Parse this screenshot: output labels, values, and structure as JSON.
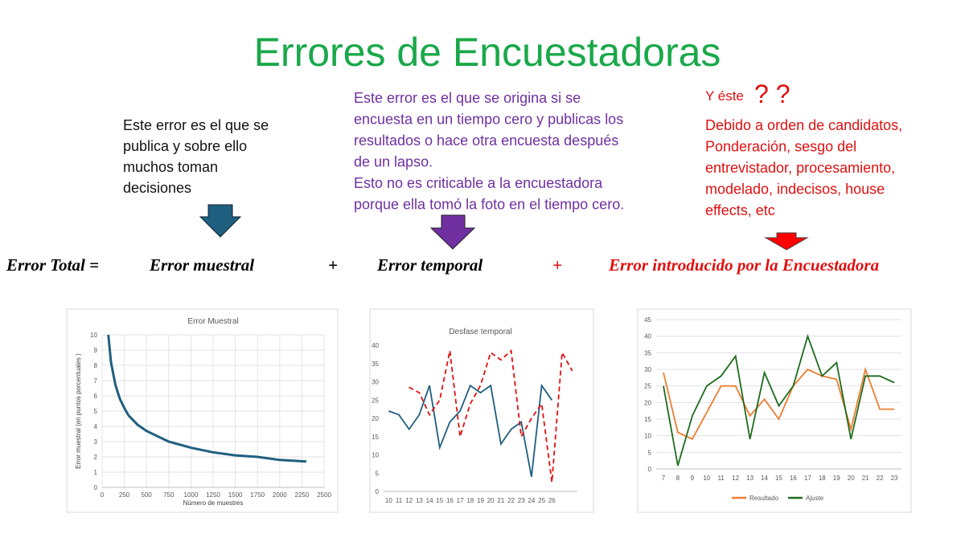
{
  "title": "Errores de Encuestadoras",
  "notes": [
    {
      "lines": [
        "Este error es el que se",
        "publica y sobre ello",
        "muchos toman",
        "decisiones"
      ]
    },
    {
      "lines": [
        "Este error es el que se origina si se",
        "encuesta en un tiempo cero y publicas los",
        "resultados o hace otra encuesta después",
        "de un lapso.",
        "Esto no es criticable a la encuestadora",
        "porque ella tomó la foto en el tiempo cero."
      ]
    },
    {
      "heading": "Y éste",
      "marks": "? ?",
      "lines": [
        "Debido a orden de candidatos,",
        "Ponderación, sesgo del",
        "entrevistador, procesamiento,",
        "modelado, indecisos, house",
        "effects, etc"
      ]
    }
  ],
  "equation": [
    "Error  Total  =",
    "Error muestral",
    "+",
    "Error temporal",
    "+",
    "Error introducido por la Encuestadora"
  ],
  "chart_data": [
    {
      "type": "line",
      "title": "Error Muestral",
      "x_label": "Número de muestres",
      "y_label": "Error muestral (en puntos porcentuales )",
      "x": [
        70,
        100,
        150,
        200,
        250,
        300,
        400,
        500,
        750,
        1000,
        1250,
        1500,
        1750,
        2000,
        2300
      ],
      "series": [
        {
          "color": "#1f5f7f",
          "values": [
            10,
            8.2,
            6.7,
            5.8,
            5.2,
            4.7,
            4.1,
            3.7,
            3.0,
            2.6,
            2.3,
            2.1,
            2.0,
            1.8,
            1.7
          ]
        }
      ],
      "xlim": [
        0,
        2500
      ],
      "xticks": [
        0,
        250,
        500,
        750,
        1000,
        1250,
        1500,
        1750,
        2000,
        2250,
        2500
      ],
      "ylim": [
        0,
        10
      ],
      "yticks": [
        0,
        1,
        2,
        3,
        4,
        5,
        6,
        7,
        8,
        9,
        10
      ],
      "grid": true
    },
    {
      "type": "line",
      "title": "Desfase temporal",
      "categories": [
        "10",
        "11",
        "12",
        "13",
        "14",
        "15",
        "16",
        "17",
        "18",
        "19",
        "20",
        "21",
        "22",
        "23",
        "24",
        "25",
        "26",
        null,
        null
      ],
      "series": [
        {
          "color": "#1f5f7f",
          "values": [
            22,
            21,
            17,
            21,
            29,
            12,
            19,
            22,
            29,
            27,
            29,
            13,
            17,
            19,
            4,
            29,
            25,
            null,
            null
          ]
        },
        {
          "color": "#e01010",
          "dashed": true,
          "values": [
            null,
            null,
            28.5,
            27,
            21,
            25,
            38.5,
            15,
            24,
            29,
            38,
            36,
            38.5,
            15,
            20,
            24,
            2.5,
            38,
            33
          ]
        }
      ],
      "ylim": [
        0,
        40
      ],
      "yticks": [
        0,
        5,
        10,
        15,
        20,
        25,
        30,
        35,
        40
      ],
      "grid": false
    },
    {
      "type": "line",
      "categories": [
        "7",
        "8",
        "9",
        "10",
        "11",
        "12",
        "13",
        "14",
        "15",
        "16",
        "17",
        "18",
        "19",
        "20",
        "21",
        "22",
        "23"
      ],
      "series": [
        {
          "name": "Resultado",
          "color": "#ed7d31",
          "values": [
            29,
            11,
            9,
            17,
            25,
            25,
            16,
            21,
            15,
            25,
            30,
            28,
            27,
            12,
            30,
            18,
            18
          ]
        },
        {
          "name": "Ajuste",
          "color": "#1e6b1e",
          "values": [
            25,
            1,
            16,
            25,
            28,
            34,
            9,
            29,
            19,
            25,
            40,
            28,
            32,
            9,
            28,
            28,
            26
          ]
        }
      ],
      "ylim": [
        0,
        45
      ],
      "yticks": [
        0,
        5,
        10,
        15,
        20,
        25,
        30,
        35,
        40,
        45
      ],
      "grid": true,
      "legend": "bottom"
    }
  ]
}
